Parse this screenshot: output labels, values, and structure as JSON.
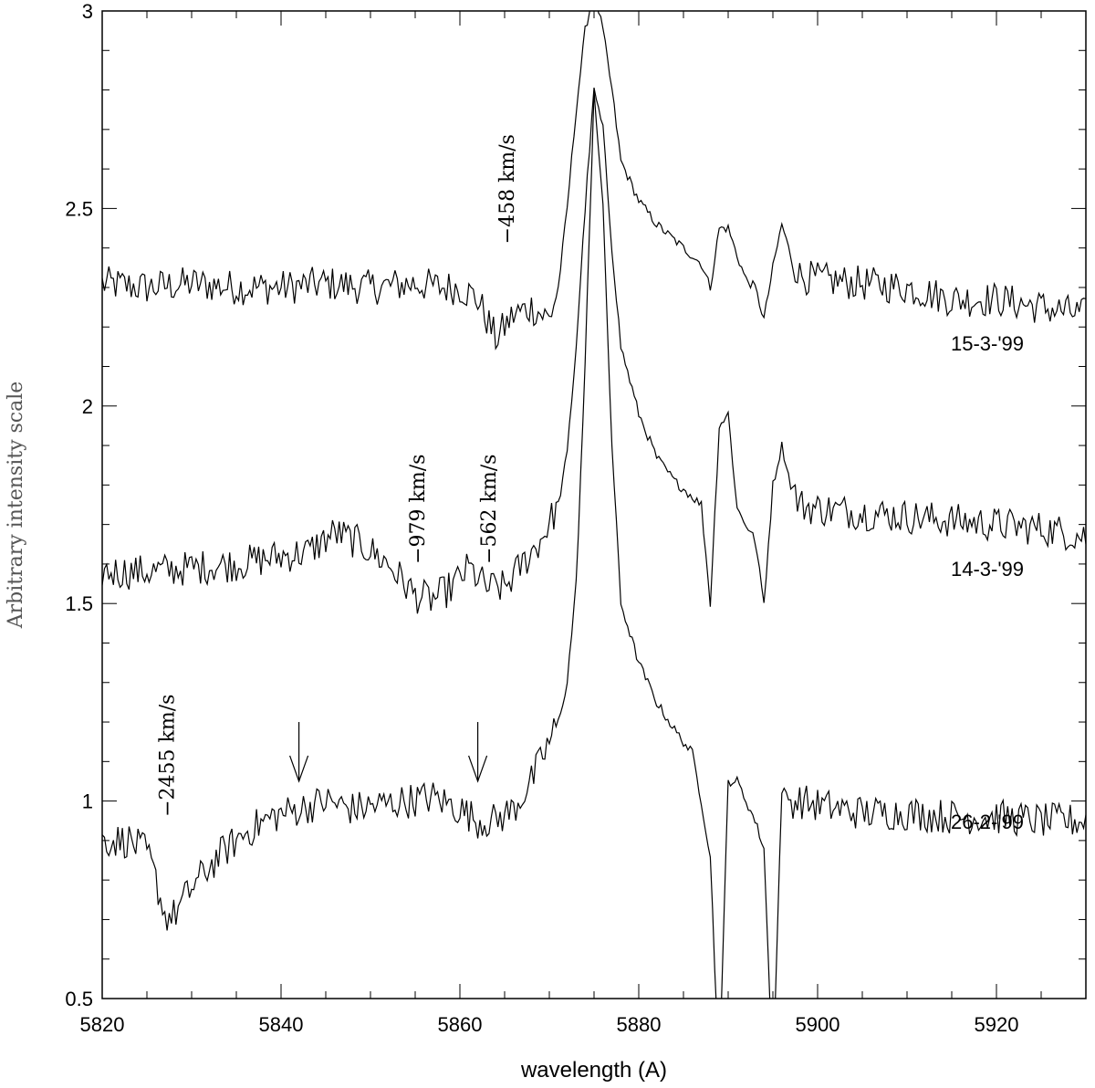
{
  "chart_data": {
    "type": "line",
    "xlabel": "wavelength (A)",
    "ylabel": "Arbitrary intensity scale",
    "xlim": [
      5820,
      5930
    ],
    "ylim": [
      0.5,
      3
    ],
    "xticks": [
      5820,
      5840,
      5860,
      5880,
      5900,
      5920
    ],
    "xtick_labels": [
      "5820",
      "5840",
      "5860",
      "5880",
      "5900",
      "5920"
    ],
    "yticks": [
      0.5,
      1,
      1.5,
      2,
      2.5,
      3
    ],
    "ytick_labels": [
      "0.5",
      "1",
      "1.5",
      "2",
      "2.5",
      "3"
    ],
    "grid": false,
    "series": [
      {
        "name": "15-3-'99",
        "color": "#000000",
        "points": [
          [
            5820,
            2.31
          ],
          [
            5825,
            2.3
          ],
          [
            5830,
            2.31
          ],
          [
            5835,
            2.3
          ],
          [
            5840,
            2.3
          ],
          [
            5845,
            2.31
          ],
          [
            5850,
            2.3
          ],
          [
            5855,
            2.31
          ],
          [
            5858,
            2.3
          ],
          [
            5860,
            2.3
          ],
          [
            5862,
            2.27
          ],
          [
            5864,
            2.17
          ],
          [
            5866,
            2.23
          ],
          [
            5868,
            2.25
          ],
          [
            5870,
            2.22
          ],
          [
            5871,
            2.3
          ],
          [
            5872,
            2.5
          ],
          [
            5873,
            2.75
          ],
          [
            5874,
            2.95
          ],
          [
            5875,
            3.05
          ],
          [
            5876,
            2.95
          ],
          [
            5877,
            2.8
          ],
          [
            5878,
            2.62
          ],
          [
            5880,
            2.52
          ],
          [
            5882,
            2.46
          ],
          [
            5884,
            2.42
          ],
          [
            5886,
            2.38
          ],
          [
            5887,
            2.36
          ],
          [
            5888,
            2.3
          ],
          [
            5889,
            2.45
          ],
          [
            5890,
            2.45
          ],
          [
            5891,
            2.38
          ],
          [
            5892,
            2.32
          ],
          [
            5893,
            2.3
          ],
          [
            5894,
            2.22
          ],
          [
            5895,
            2.35
          ],
          [
            5896,
            2.46
          ],
          [
            5897,
            2.38
          ],
          [
            5898,
            2.33
          ],
          [
            5900,
            2.32
          ],
          [
            5905,
            2.31
          ],
          [
            5910,
            2.3
          ],
          [
            5915,
            2.27
          ],
          [
            5920,
            2.27
          ],
          [
            5925,
            2.25
          ],
          [
            5930,
            2.23
          ]
        ]
      },
      {
        "name": "14-3-'99",
        "color": "#000000",
        "points": [
          [
            5820,
            1.58
          ],
          [
            5825,
            1.58
          ],
          [
            5830,
            1.59
          ],
          [
            5835,
            1.6
          ],
          [
            5840,
            1.62
          ],
          [
            5843,
            1.63
          ],
          [
            5846,
            1.68
          ],
          [
            5849,
            1.65
          ],
          [
            5852,
            1.6
          ],
          [
            5855,
            1.52
          ],
          [
            5857,
            1.51
          ],
          [
            5859,
            1.54
          ],
          [
            5861,
            1.59
          ],
          [
            5863,
            1.54
          ],
          [
            5865,
            1.54
          ],
          [
            5867,
            1.6
          ],
          [
            5869,
            1.66
          ],
          [
            5871,
            1.75
          ],
          [
            5872,
            1.88
          ],
          [
            5873,
            2.15
          ],
          [
            5874,
            2.5
          ],
          [
            5875,
            2.8
          ],
          [
            5876,
            2.7
          ],
          [
            5877,
            2.4
          ],
          [
            5878,
            2.15
          ],
          [
            5880,
            1.98
          ],
          [
            5882,
            1.87
          ],
          [
            5884,
            1.81
          ],
          [
            5886,
            1.77
          ],
          [
            5887,
            1.75
          ],
          [
            5888,
            1.5
          ],
          [
            5889,
            1.95
          ],
          [
            5890,
            1.98
          ],
          [
            5891,
            1.74
          ],
          [
            5892,
            1.7
          ],
          [
            5893,
            1.66
          ],
          [
            5894,
            1.5
          ],
          [
            5895,
            1.8
          ],
          [
            5896,
            1.9
          ],
          [
            5897,
            1.8
          ],
          [
            5898,
            1.75
          ],
          [
            5900,
            1.74
          ],
          [
            5905,
            1.73
          ],
          [
            5910,
            1.72
          ],
          [
            5915,
            1.71
          ],
          [
            5920,
            1.7
          ],
          [
            5925,
            1.69
          ],
          [
            5930,
            1.67
          ]
        ]
      },
      {
        "name": "26-2-'99",
        "color": "#000000",
        "points": [
          [
            5820,
            0.9
          ],
          [
            5823,
            0.9
          ],
          [
            5825,
            0.87
          ],
          [
            5826,
            0.8
          ],
          [
            5827,
            0.71
          ],
          [
            5828,
            0.71
          ],
          [
            5830,
            0.78
          ],
          [
            5833,
            0.86
          ],
          [
            5836,
            0.92
          ],
          [
            5839,
            0.96
          ],
          [
            5842,
            0.98
          ],
          [
            5845,
            1.0
          ],
          [
            5848,
            0.98
          ],
          [
            5851,
            0.99
          ],
          [
            5854,
            1.0
          ],
          [
            5857,
            1.01
          ],
          [
            5860,
            0.98
          ],
          [
            5862,
            0.95
          ],
          [
            5864,
            0.95
          ],
          [
            5866,
            0.98
          ],
          [
            5868,
            1.05
          ],
          [
            5870,
            1.15
          ],
          [
            5871,
            1.2
          ],
          [
            5872,
            1.3
          ],
          [
            5873,
            1.55
          ],
          [
            5874,
            2.1
          ],
          [
            5875,
            2.8
          ],
          [
            5876,
            2.5
          ],
          [
            5877,
            1.9
          ],
          [
            5878,
            1.5
          ],
          [
            5880,
            1.35
          ],
          [
            5882,
            1.25
          ],
          [
            5884,
            1.18
          ],
          [
            5886,
            1.12
          ],
          [
            5887,
            1.0
          ],
          [
            5888,
            0.86
          ],
          [
            5889,
            0.3
          ],
          [
            5890,
            1.05
          ],
          [
            5891,
            1.05
          ],
          [
            5892,
            1.0
          ],
          [
            5893,
            0.95
          ],
          [
            5894,
            0.88
          ],
          [
            5895,
            0.3
          ],
          [
            5896,
            1.03
          ],
          [
            5897,
            1.0
          ],
          [
            5898,
            1.0
          ],
          [
            5900,
            0.99
          ],
          [
            5905,
            0.97
          ],
          [
            5910,
            0.97
          ],
          [
            5915,
            0.96
          ],
          [
            5920,
            0.96
          ],
          [
            5925,
            0.95
          ],
          [
            5930,
            0.95
          ]
        ]
      }
    ],
    "series_labels": [
      {
        "text": "15-3-'99",
        "x": 5920,
        "y": 2.14
      },
      {
        "text": "14-3-'99",
        "x": 5920,
        "y": 1.57
      },
      {
        "text": "26-2-'99",
        "x": 5920,
        "y": 0.93
      }
    ],
    "annotations": [
      {
        "text": "−458 km/s",
        "x": 5866,
        "y": 2.41
      },
      {
        "text": "−979 km/s",
        "x": 5856,
        "y": 1.6
      },
      {
        "text": "−562 km/s",
        "x": 5864,
        "y": 1.6
      },
      {
        "text": "−2455 km/s",
        "x": 5828,
        "y": 0.96
      }
    ],
    "arrows": [
      {
        "x": 5842,
        "y_from": 1.2,
        "y_to": 1.05
      },
      {
        "x": 5862,
        "y_from": 1.2,
        "y_to": 1.05
      }
    ]
  }
}
